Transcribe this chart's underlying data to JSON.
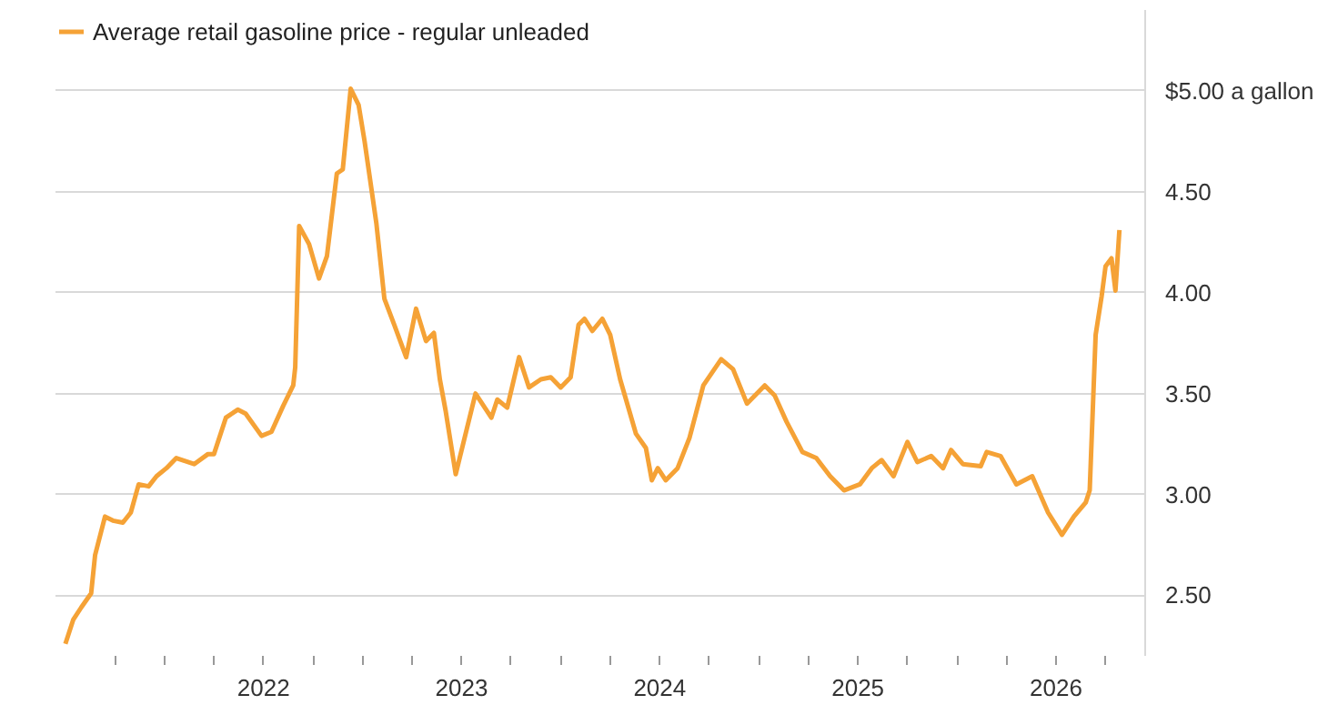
{
  "chart_data": {
    "type": "line",
    "series": [
      {
        "name": "Average retail gasoline price - regular unleaded",
        "color": "#f5a236",
        "x": [
          2021.0,
          2021.04,
          2021.08,
          2021.13,
          2021.15,
          2021.2,
          2021.24,
          2021.29,
          2021.33,
          2021.37,
          2021.42,
          2021.46,
          2021.51,
          2021.56,
          2021.65,
          2021.72,
          2021.75,
          2021.81,
          2021.87,
          2021.91,
          2021.99,
          2022.04,
          2022.1,
          2022.15,
          2022.16,
          2022.18,
          2022.23,
          2022.28,
          2022.32,
          2022.37,
          2022.4,
          2022.44,
          2022.48,
          2022.51,
          2022.57,
          2022.61,
          2022.66,
          2022.72,
          2022.77,
          2022.82,
          2022.86,
          2022.89,
          2022.92,
          2022.97,
          2023.02,
          2023.07,
          2023.15,
          2023.18,
          2023.23,
          2023.29,
          2023.34,
          2023.4,
          2023.45,
          2023.5,
          2023.55,
          2023.59,
          2023.62,
          2023.66,
          2023.71,
          2023.75,
          2023.8,
          2023.88,
          2023.93,
          2023.96,
          2023.99,
          2024.03,
          2024.09,
          2024.15,
          2024.22,
          2024.31,
          2024.37,
          2024.44,
          2024.53,
          2024.58,
          2024.64,
          2024.72,
          2024.79,
          2024.86,
          2024.93,
          2025.01,
          2025.07,
          2025.12,
          2025.18,
          2025.25,
          2025.3,
          2025.37,
          2025.43,
          2025.47,
          2025.53,
          2025.62,
          2025.65,
          2025.72,
          2025.8,
          2025.88,
          2025.96,
          2026.03,
          2026.09,
          2026.15,
          2026.17,
          2026.2,
          2026.23,
          2026.25,
          2026.28,
          2026.3,
          2026.32
        ],
        "values": [
          2.26,
          2.38,
          2.44,
          2.51,
          2.7,
          2.89,
          2.87,
          2.86,
          2.91,
          3.05,
          3.04,
          3.09,
          3.13,
          3.18,
          3.15,
          3.2,
          3.2,
          3.38,
          3.42,
          3.4,
          3.29,
          3.31,
          3.44,
          3.54,
          3.63,
          4.33,
          4.24,
          4.07,
          4.18,
          4.59,
          4.61,
          5.01,
          4.93,
          4.75,
          4.34,
          3.97,
          3.84,
          3.68,
          3.92,
          3.76,
          3.8,
          3.57,
          3.41,
          3.1,
          3.3,
          3.5,
          3.38,
          3.47,
          3.43,
          3.68,
          3.53,
          3.57,
          3.58,
          3.53,
          3.58,
          3.84,
          3.87,
          3.81,
          3.87,
          3.79,
          3.57,
          3.3,
          3.23,
          3.07,
          3.13,
          3.07,
          3.13,
          3.28,
          3.54,
          3.67,
          3.62,
          3.45,
          3.54,
          3.49,
          3.36,
          3.21,
          3.18,
          3.09,
          3.02,
          3.05,
          3.13,
          3.17,
          3.09,
          3.26,
          3.16,
          3.19,
          3.13,
          3.22,
          3.15,
          3.14,
          3.21,
          3.19,
          3.05,
          3.09,
          2.91,
          2.8,
          2.89,
          2.96,
          3.02,
          3.79,
          3.98,
          4.13,
          4.17,
          4.01,
          4.31
        ]
      }
    ],
    "xlim": [
      2020.95,
      2026.45
    ],
    "xticks": [
      {
        "value": 2021.25,
        "label": null
      },
      {
        "value": 2021.5,
        "label": null
      },
      {
        "value": 2021.75,
        "label": null
      },
      2022,
      {
        "value": 2022.25,
        "label": null
      },
      {
        "value": 2022.5,
        "label": null
      },
      {
        "value": 2022.75,
        "label": null
      },
      2023,
      {
        "value": 2023.25,
        "label": null
      },
      {
        "value": 2023.5,
        "label": null
      },
      {
        "value": 2023.75,
        "label": null
      },
      2024,
      {
        "value": 2024.25,
        "label": null
      },
      {
        "value": 2024.5,
        "label": null
      },
      {
        "value": 2024.75,
        "label": null
      },
      2025,
      {
        "value": 2025.25,
        "label": null
      },
      {
        "value": 2025.5,
        "label": null
      },
      {
        "value": 2025.75,
        "label": null
      },
      2026,
      {
        "value": 2026.25,
        "label": null
      }
    ],
    "ylim": [
      2.2,
      5.4
    ],
    "yticks": [
      {
        "value": 2.5,
        "label": "2.50"
      },
      {
        "value": 3,
        "label": "3.00"
      },
      {
        "value": 3.5,
        "label": "3.50"
      },
      {
        "value": 4,
        "label": "4.00"
      },
      {
        "value": 4.5,
        "label": "4.50"
      },
      {
        "value": 5,
        "label": "$5.00 a gallon"
      }
    ],
    "grid": "y",
    "legend": "top left",
    "line_style": "solid"
  }
}
